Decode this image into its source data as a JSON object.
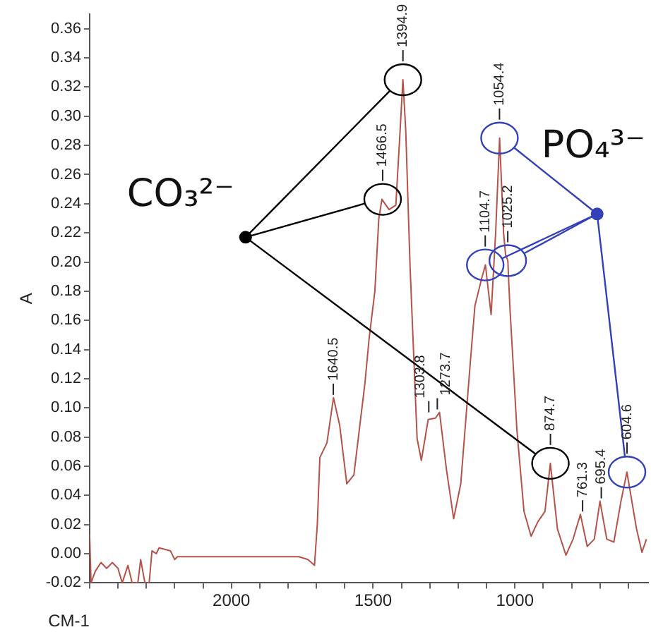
{
  "chart_data": {
    "type": "line",
    "ylabel": "A",
    "xlabel": "CM-1",
    "xlim": [
      2500,
      530
    ],
    "ylim": [
      -0.02,
      0.37
    ],
    "xticks": [
      {
        "value": 2500,
        "label": null
      },
      {
        "value": 2400,
        "label": null
      },
      {
        "value": 2300,
        "label": null
      },
      {
        "value": 2200,
        "label": null
      },
      {
        "value": 2100,
        "label": null
      },
      2000,
      {
        "value": 1900,
        "label": null
      },
      {
        "value": 1800,
        "label": null
      },
      {
        "value": 1700,
        "label": null
      },
      {
        "value": 1600,
        "label": null
      },
      1500,
      {
        "value": 1400,
        "label": null
      },
      {
        "value": 1300,
        "label": null
      },
      {
        "value": 1200,
        "label": null
      },
      {
        "value": 1100,
        "label": null
      },
      1000,
      {
        "value": 900,
        "label": null
      },
      {
        "value": 800,
        "label": null
      },
      {
        "value": 700,
        "label": null
      },
      {
        "value": 600,
        "label": null
      }
    ],
    "yticks": [
      {
        "value": -0.02,
        "label": "-0.02"
      },
      {
        "value": 0,
        "label": "0.00"
      },
      {
        "value": 0.02,
        "label": "0.02"
      },
      {
        "value": 0.04,
        "label": "0.04"
      },
      {
        "value": 0.06,
        "label": "0.06"
      },
      {
        "value": 0.08,
        "label": "0.08"
      },
      {
        "value": 0.1,
        "label": "0.10"
      },
      {
        "value": 0.12,
        "label": "0.12"
      },
      {
        "value": 0.14,
        "label": "0.14"
      },
      {
        "value": 0.16,
        "label": "0.16"
      },
      {
        "value": 0.18,
        "label": "0.18"
      },
      {
        "value": 0.2,
        "label": "0.20"
      },
      {
        "value": 0.22,
        "label": "0.22"
      },
      {
        "value": 0.24,
        "label": "0.24"
      },
      {
        "value": 0.26,
        "label": "0.26"
      },
      {
        "value": 0.28,
        "label": "0.28"
      },
      {
        "value": 0.3,
        "label": "0.30"
      },
      {
        "value": 0.32,
        "label": "0.32"
      },
      {
        "value": 0.34,
        "label": "0.34"
      },
      {
        "value": 0.36,
        "label": "0.36"
      }
    ],
    "grid": false,
    "legend": false,
    "marker": "none",
    "line_style": "solid",
    "series": [
      {
        "color": "#b5524a",
        "x": [
          2500,
          2495,
          2480,
          2460,
          2440,
          2420,
          2400,
          2385,
          2365,
          2350,
          2330,
          2320,
          2305,
          2290,
          2280,
          2265,
          2255,
          2235,
          2215,
          2200,
          2190,
          1900,
          1762,
          1730,
          1707,
          1697,
          1688,
          1663,
          1640,
          1618,
          1593,
          1568,
          1529,
          1514,
          1494,
          1480,
          1469,
          1444,
          1420,
          1405,
          1395,
          1385,
          1370,
          1345,
          1330,
          1306,
          1280,
          1266,
          1241,
          1216,
          1191,
          1157,
          1141,
          1117,
          1104,
          1084,
          1068,
          1054,
          1040,
          1033,
          1025,
          1018,
          993,
          968,
          943,
          919,
          894,
          875,
          850,
          820,
          795,
          769,
          745,
          720,
          700,
          676,
          651,
          626,
          605,
          571,
          552,
          536
        ],
        "values": [
          0.013,
          -0.02,
          -0.012,
          -0.006,
          -0.01,
          -0.006,
          -0.01,
          -0.02,
          -0.008,
          -0.02,
          -0.02,
          -0.004,
          -0.02,
          -0.02,
          0.002,
          0.0,
          0.004,
          0.003,
          0.002,
          -0.004,
          -0.002,
          -0.002,
          -0.002,
          -0.004,
          -0.008,
          0.02,
          0.066,
          0.076,
          0.107,
          0.088,
          0.048,
          0.054,
          0.117,
          0.148,
          0.18,
          0.23,
          0.243,
          0.236,
          0.239,
          0.29,
          0.325,
          0.29,
          0.198,
          0.079,
          0.064,
          0.092,
          0.093,
          0.097,
          0.057,
          0.024,
          0.048,
          0.132,
          0.17,
          0.189,
          0.198,
          0.164,
          0.22,
          0.285,
          0.22,
          0.205,
          0.201,
          0.17,
          0.085,
          0.029,
          0.012,
          0.022,
          0.029,
          0.062,
          0.017,
          -0.001,
          0.01,
          0.027,
          0.005,
          0.01,
          0.036,
          0.01,
          0.008,
          0.036,
          0.056,
          0.017,
          0.001,
          0.01
        ]
      }
    ],
    "annotations": [
      {
        "text": "1394.9",
        "x": 1394.9,
        "y": 0.325
      },
      {
        "text": "1466.5",
        "x": 1466.5,
        "y": 0.243
      },
      {
        "text": "874.7",
        "x": 874.7,
        "y": 0.062
      },
      {
        "text": "1054.4",
        "x": 1054.4,
        "y": 0.285
      },
      {
        "text": "1104.7",
        "x": 1104.7,
        "y": 0.198
      },
      {
        "text": "1025.2",
        "x": 1025.2,
        "y": 0.201
      },
      {
        "text": "604.6",
        "x": 604.6,
        "y": 0.056
      },
      {
        "text": "1640.5",
        "x": 1640.5,
        "y": 0.107
      },
      {
        "text": "1303.8",
        "x": 1303.8,
        "y": 0.095
      },
      {
        "text": "1273.7",
        "x": 1273.7,
        "y": 0.097
      },
      {
        "text": "761.3",
        "x": 761.3,
        "y": 0.027
      },
      {
        "text": "695.4",
        "x": 695.4,
        "y": 0.036
      },
      {
        "text": "CO₃²⁻",
        "x": 1950,
        "y": 0.217
      },
      {
        "text": "PO₄³⁻",
        "x": 710,
        "y": 0.233
      }
    ]
  }
}
